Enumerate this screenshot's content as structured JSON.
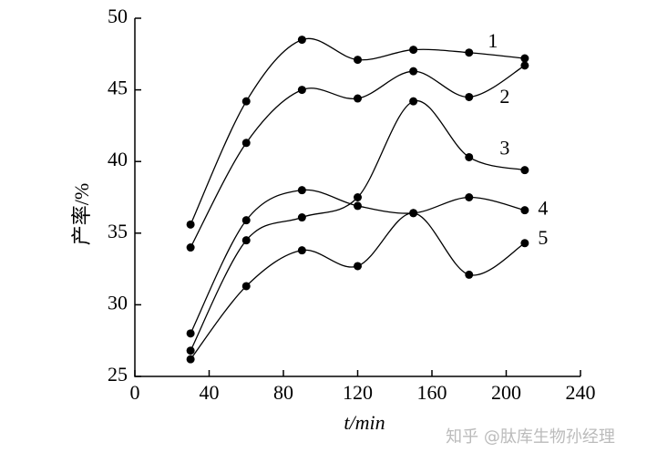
{
  "chart_data": {
    "type": "line",
    "x_label": "t/min",
    "y_label": "产率/%",
    "watermark": "知乎 @肽库生物孙经理",
    "x": [
      30,
      60,
      90,
      120,
      150,
      180,
      210
    ],
    "series": [
      {
        "name": "1",
        "color": "#000000",
        "values": [
          35.6,
          44.2,
          48.5,
          47.1,
          47.8,
          47.6,
          47.2
        ]
      },
      {
        "name": "2",
        "color": "#000000",
        "values": [
          34.0,
          41.3,
          45.0,
          44.4,
          46.3,
          44.5,
          46.7
        ]
      },
      {
        "name": "3",
        "color": "#000000",
        "values": [
          26.8,
          34.5,
          36.1,
          37.5,
          44.2,
          40.3,
          39.4
        ]
      },
      {
        "name": "4",
        "color": "#000000",
        "values": [
          28.0,
          35.9,
          38.0,
          36.9,
          36.4,
          37.5,
          36.6
        ]
      },
      {
        "name": "5",
        "color": "#000000",
        "values": [
          26.2,
          31.3,
          33.8,
          32.7,
          36.4,
          32.1,
          34.3
        ]
      }
    ],
    "xlim": [
      0,
      240
    ],
    "xticks": [
      0,
      40,
      80,
      120,
      160,
      200,
      240
    ],
    "ylim": [
      25,
      50
    ],
    "yticks": [
      25,
      30,
      35,
      40,
      45,
      50
    ]
  }
}
